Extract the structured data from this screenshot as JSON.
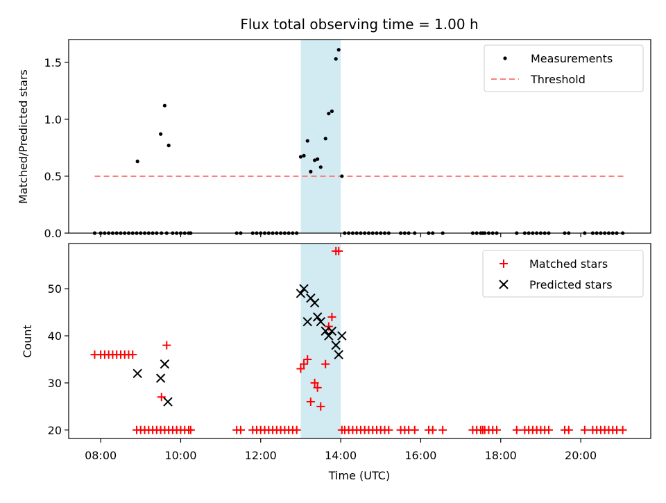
{
  "chart_data": {
    "type": "scatter",
    "title": "Flux total observing time = 1.00 h",
    "xlabel": "Time (UTC)",
    "x_unit": "hours UTC",
    "xlim": [
      7.2,
      21.75
    ],
    "xticks": [
      {
        "value": 8,
        "label": "08:00"
      },
      {
        "value": 10,
        "label": "10:00"
      },
      {
        "value": 12,
        "label": "12:00"
      },
      {
        "value": 14,
        "label": "14:00"
      },
      {
        "value": 16,
        "label": "16:00"
      },
      {
        "value": 18,
        "label": "18:00"
      },
      {
        "value": 20,
        "label": "20:00"
      }
    ],
    "highlight_span": [
      13.0,
      14.0
    ],
    "highlight_color": "#add8e6",
    "top_panel": {
      "ylabel": "Matched/Predicted stars",
      "ylim": [
        0,
        1.7
      ],
      "yticks": [
        {
          "value": 0.0,
          "label": "0.0"
        },
        {
          "value": 0.5,
          "label": "0.5"
        },
        {
          "value": 1.0,
          "label": "1.0"
        },
        {
          "value": 1.5,
          "label": "1.5"
        }
      ],
      "legend": {
        "placement": "top-right",
        "items": [
          {
            "label": "Measurements",
            "marker": "dot",
            "color": "#000000"
          },
          {
            "label": "Threshold",
            "marker": "dashed-line",
            "color": "#ff7f7f"
          }
        ]
      },
      "threshold": {
        "y": 0.5,
        "x": [
          7.85,
          21.1
        ]
      },
      "measurements": {
        "x": [
          7.85,
          8.0,
          8.1,
          8.2,
          8.3,
          8.4,
          8.5,
          8.6,
          8.7,
          8.8,
          8.9,
          8.92,
          9.0,
          9.1,
          9.2,
          9.3,
          9.4,
          9.5,
          9.52,
          9.6,
          9.65,
          9.7,
          9.8,
          9.9,
          10.0,
          10.1,
          10.2,
          10.25,
          11.4,
          11.5,
          11.8,
          11.9,
          12.0,
          12.1,
          12.2,
          12.3,
          12.4,
          12.5,
          12.6,
          12.7,
          12.8,
          12.9,
          13.0,
          13.08,
          13.17,
          13.25,
          13.35,
          13.42,
          13.5,
          13.62,
          13.7,
          13.78,
          13.88,
          13.95,
          14.03,
          14.1,
          14.2,
          14.3,
          14.4,
          14.5,
          14.6,
          14.7,
          14.8,
          14.9,
          15.0,
          15.1,
          15.2,
          15.5,
          15.6,
          15.7,
          15.85,
          16.2,
          16.3,
          16.55,
          17.3,
          17.4,
          17.5,
          17.55,
          17.6,
          17.7,
          17.8,
          17.9,
          18.4,
          18.6,
          18.7,
          18.8,
          18.9,
          19.0,
          19.1,
          19.2,
          19.6,
          19.7,
          20.1,
          20.3,
          20.4,
          20.5,
          20.6,
          20.7,
          20.8,
          20.9,
          21.05
        ],
        "y": [
          0,
          0,
          0,
          0,
          0,
          0,
          0,
          0,
          0,
          0,
          0,
          0.63,
          0,
          0,
          0,
          0,
          0,
          0.87,
          0,
          1.12,
          0,
          0.77,
          0,
          0,
          0,
          0,
          0,
          0,
          0,
          0,
          0,
          0,
          0,
          0,
          0,
          0,
          0,
          0,
          0,
          0,
          0,
          0,
          0.67,
          0.68,
          0.81,
          0.54,
          0.64,
          0.65,
          0.58,
          0.83,
          1.05,
          1.07,
          1.53,
          1.61,
          0.5,
          0,
          0,
          0,
          0,
          0,
          0,
          0,
          0,
          0,
          0,
          0,
          0,
          0,
          0,
          0,
          0,
          0,
          0,
          0,
          0,
          0,
          0,
          0,
          0,
          0,
          0,
          0,
          0,
          0,
          0,
          0,
          0,
          0,
          0,
          0,
          0,
          0,
          0,
          0,
          0,
          0,
          0,
          0,
          0,
          0,
          0
        ]
      }
    },
    "bottom_panel": {
      "ylabel": "Count",
      "ylim": [
        18.2,
        59.6
      ],
      "yticks": [
        {
          "value": 20,
          "label": "20"
        },
        {
          "value": 30,
          "label": "30"
        },
        {
          "value": 40,
          "label": "40"
        },
        {
          "value": 50,
          "label": "50"
        }
      ],
      "legend": {
        "placement": "top-right",
        "items": [
          {
            "label": "Matched stars",
            "marker": "plus",
            "color": "#ff0000"
          },
          {
            "label": "Predicted stars",
            "marker": "x",
            "color": "#000000"
          }
        ]
      },
      "matched_stars": {
        "x": [
          7.85,
          8.0,
          8.1,
          8.2,
          8.3,
          8.4,
          8.5,
          8.6,
          8.7,
          8.8,
          8.9,
          9.0,
          9.1,
          9.2,
          9.3,
          9.4,
          9.5,
          9.52,
          9.6,
          9.65,
          9.7,
          9.8,
          9.9,
          10.0,
          10.1,
          10.2,
          10.25,
          11.4,
          11.5,
          11.8,
          11.9,
          12.0,
          12.1,
          12.2,
          12.3,
          12.4,
          12.5,
          12.6,
          12.7,
          12.8,
          12.9,
          13.0,
          13.08,
          13.17,
          13.25,
          13.35,
          13.42,
          13.5,
          13.62,
          13.7,
          13.78,
          13.88,
          13.95,
          14.03,
          14.1,
          14.2,
          14.3,
          14.4,
          14.5,
          14.6,
          14.7,
          14.8,
          14.9,
          15.0,
          15.1,
          15.2,
          15.5,
          15.6,
          15.7,
          15.85,
          16.2,
          16.3,
          16.55,
          17.3,
          17.4,
          17.5,
          17.55,
          17.6,
          17.7,
          17.8,
          17.9,
          18.4,
          18.6,
          18.7,
          18.8,
          18.9,
          19.0,
          19.1,
          19.2,
          19.6,
          19.7,
          20.1,
          20.3,
          20.4,
          20.5,
          20.6,
          20.7,
          20.8,
          20.9,
          21.05
        ],
        "y": [
          36,
          36,
          36,
          36,
          36,
          36,
          36,
          36,
          36,
          36,
          20,
          20,
          20,
          20,
          20,
          20,
          20,
          27,
          20,
          38,
          20,
          20,
          20,
          20,
          20,
          20,
          20,
          20,
          20,
          20,
          20,
          20,
          20,
          20,
          20,
          20,
          20,
          20,
          20,
          20,
          20,
          33,
          34,
          35,
          26,
          30,
          29,
          25,
          34,
          42,
          44,
          58,
          58,
          20,
          20,
          20,
          20,
          20,
          20,
          20,
          20,
          20,
          20,
          20,
          20,
          20,
          20,
          20,
          20,
          20,
          20,
          20,
          20,
          20,
          20,
          20,
          20,
          20,
          20,
          20,
          20,
          20,
          20,
          20,
          20,
          20,
          20,
          20,
          20,
          20,
          20,
          20,
          20,
          20,
          20,
          20,
          20,
          20,
          20,
          20
        ]
      },
      "predicted_stars": {
        "x": [
          8.92,
          9.5,
          9.6,
          9.68,
          13.0,
          13.08,
          13.17,
          13.25,
          13.35,
          13.42,
          13.5,
          13.62,
          13.7,
          13.78,
          13.88,
          13.95,
          14.03
        ],
        "y": [
          32,
          31,
          34,
          26,
          49,
          50,
          43,
          48,
          47,
          44,
          43,
          41,
          40,
          41,
          38,
          36,
          40
        ]
      }
    }
  }
}
